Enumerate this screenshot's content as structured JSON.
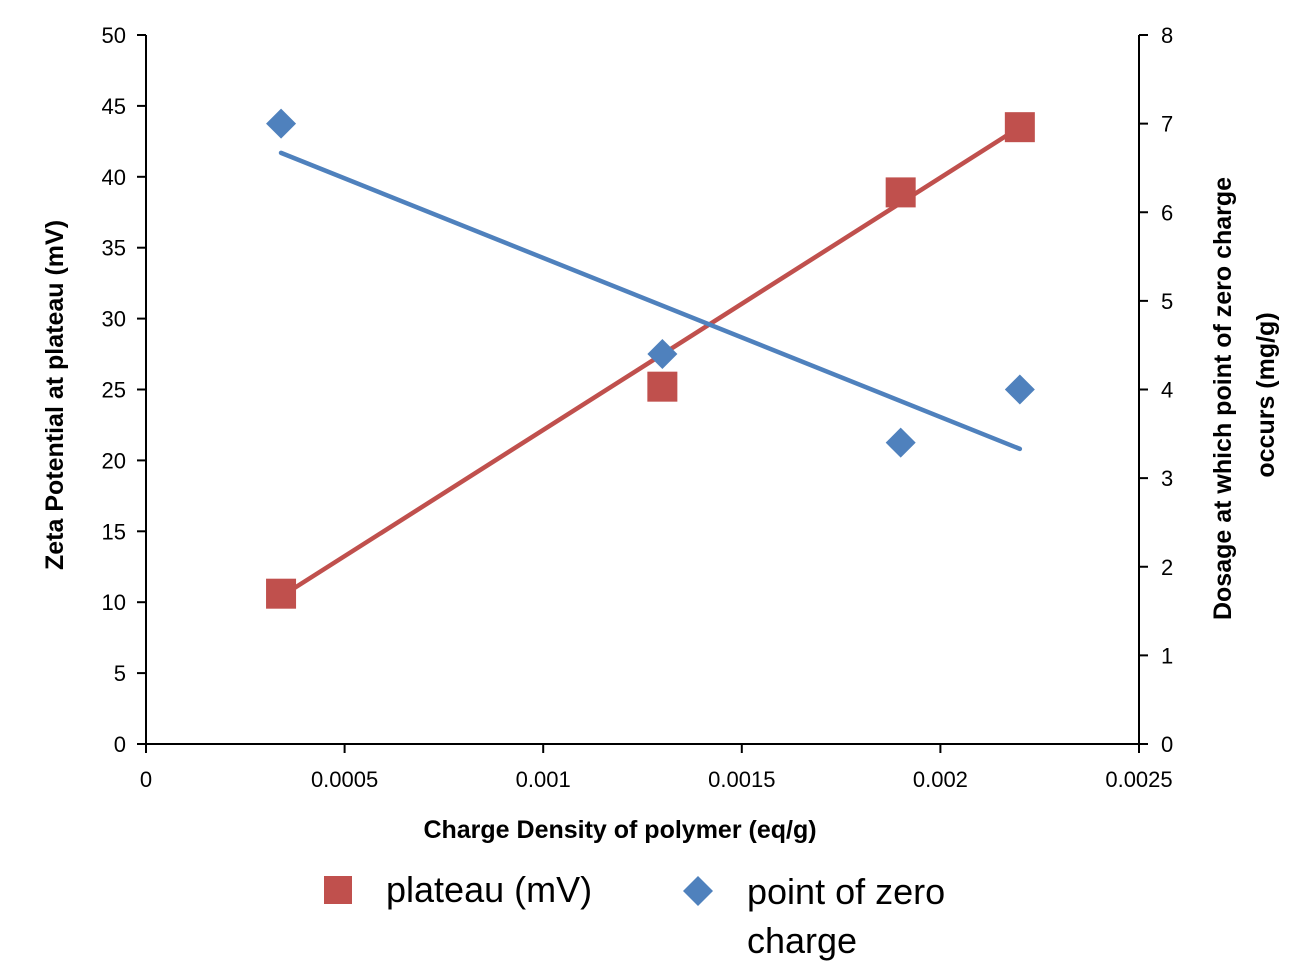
{
  "chart_data": {
    "type": "scatter",
    "title": "",
    "xlabel": "Charge Density of polymer (eq/g)",
    "ylabel": "Zeta Potential at plateau (mV)",
    "y2label_lines": [
      "Dosage at which point of zero charge",
      "occurs (mg/g)"
    ],
    "xlim": [
      0,
      0.0025
    ],
    "ylim": [
      0,
      50
    ],
    "y2lim": [
      0,
      8
    ],
    "x_ticks": [
      "0",
      "0.0005",
      "0.001",
      "0.0015",
      "0.002",
      "0.0025"
    ],
    "x_tick_values": [
      0,
      0.0005,
      0.001,
      0.0015,
      0.002,
      0.0025
    ],
    "y_ticks": [
      "0",
      "5",
      "10",
      "15",
      "20",
      "25",
      "30",
      "35",
      "40",
      "45",
      "50"
    ],
    "y_tick_values": [
      0,
      5,
      10,
      15,
      20,
      25,
      30,
      35,
      40,
      45,
      50
    ],
    "y2_ticks": [
      "0",
      "1",
      "2",
      "3",
      "4",
      "5",
      "6",
      "7",
      "8"
    ],
    "y2_tick_values": [
      0,
      1,
      2,
      3,
      4,
      5,
      6,
      7,
      8
    ],
    "grid": false,
    "legend_position": "bottom",
    "series": [
      {
        "name": "plateau (mV)",
        "axis": "left",
        "marker": "square",
        "color": "#C0504D",
        "x": [
          0.00034,
          0.0013,
          0.0019,
          0.0022
        ],
        "y": [
          10.6,
          25.2,
          38.9,
          43.5
        ],
        "trendline": {
          "x": [
            0.00034,
            0.0022
          ],
          "y": [
            10.4,
            43.5
          ]
        }
      },
      {
        "name": "point of zero charge",
        "legend_lines": [
          "point of zero",
          "charge"
        ],
        "axis": "right",
        "marker": "diamond",
        "color": "#4F81BD",
        "x": [
          0.00034,
          0.0013,
          0.0019,
          0.0022
        ],
        "y": [
          7.0,
          4.4,
          3.4,
          4.0
        ],
        "trendline": {
          "x": [
            0.00034,
            0.0022
          ],
          "y": [
            6.67,
            3.33
          ]
        }
      }
    ]
  }
}
